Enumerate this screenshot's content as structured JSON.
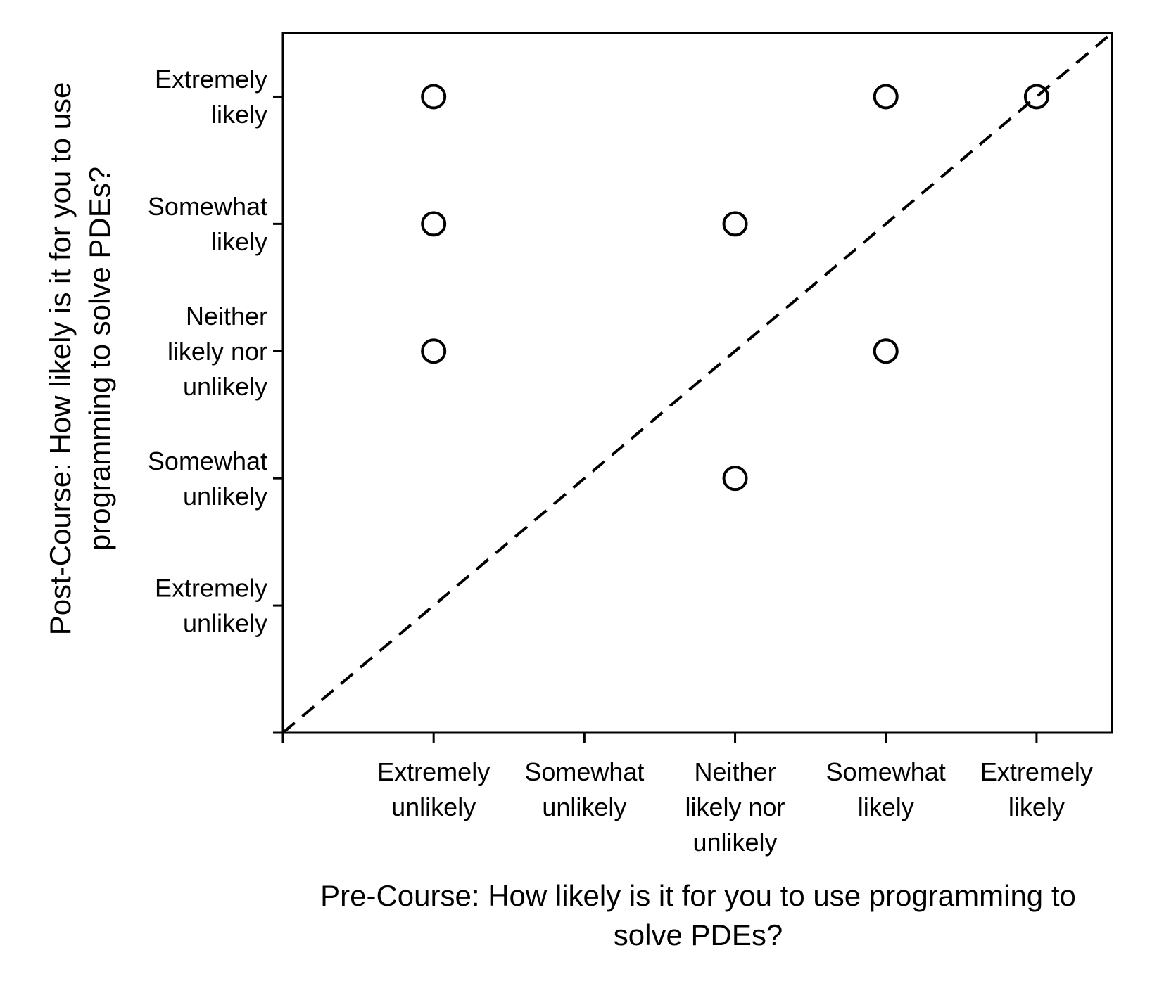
{
  "chart_data": {
    "type": "scatter",
    "title": "",
    "xlabel_lines": [
      "Pre-Course: How likely is it for you to use programming to",
      "solve PDEs?"
    ],
    "ylabel_lines": [
      "Post-Course: How likely is it for you to use",
      "programming to solve PDEs?"
    ],
    "x_tick_labels": [
      [
        "Extremely",
        "unlikely"
      ],
      [
        "Somewhat",
        "unlikely"
      ],
      [
        "Neither",
        "likely nor",
        "unlikely"
      ],
      [
        "Somewhat",
        "likely"
      ],
      [
        "Extremely",
        "likely"
      ]
    ],
    "y_tick_labels": [
      [
        "Extremely",
        "unlikely"
      ],
      [
        "Somewhat",
        "unlikely"
      ],
      [
        "Neither",
        "likely nor",
        "unlikely"
      ],
      [
        "Somewhat",
        "likely"
      ],
      [
        "Extremely",
        "likely"
      ]
    ],
    "xlim": [
      0,
      5.5
    ],
    "ylim": [
      0,
      5.5
    ],
    "points": [
      {
        "x": 1,
        "y": 5
      },
      {
        "x": 4,
        "y": 5
      },
      {
        "x": 5,
        "y": 5
      },
      {
        "x": 1,
        "y": 4
      },
      {
        "x": 3,
        "y": 4
      },
      {
        "x": 1,
        "y": 3
      },
      {
        "x": 4,
        "y": 3
      },
      {
        "x": 3,
        "y": 2
      }
    ],
    "reference_line": {
      "style": "dashed",
      "x": [
        0,
        5.5
      ],
      "y": [
        0,
        5.5
      ]
    },
    "marker": "open-circle",
    "grid": false,
    "legend": "none",
    "colors": {
      "marks": "#000000",
      "background": "#ffffff"
    }
  }
}
